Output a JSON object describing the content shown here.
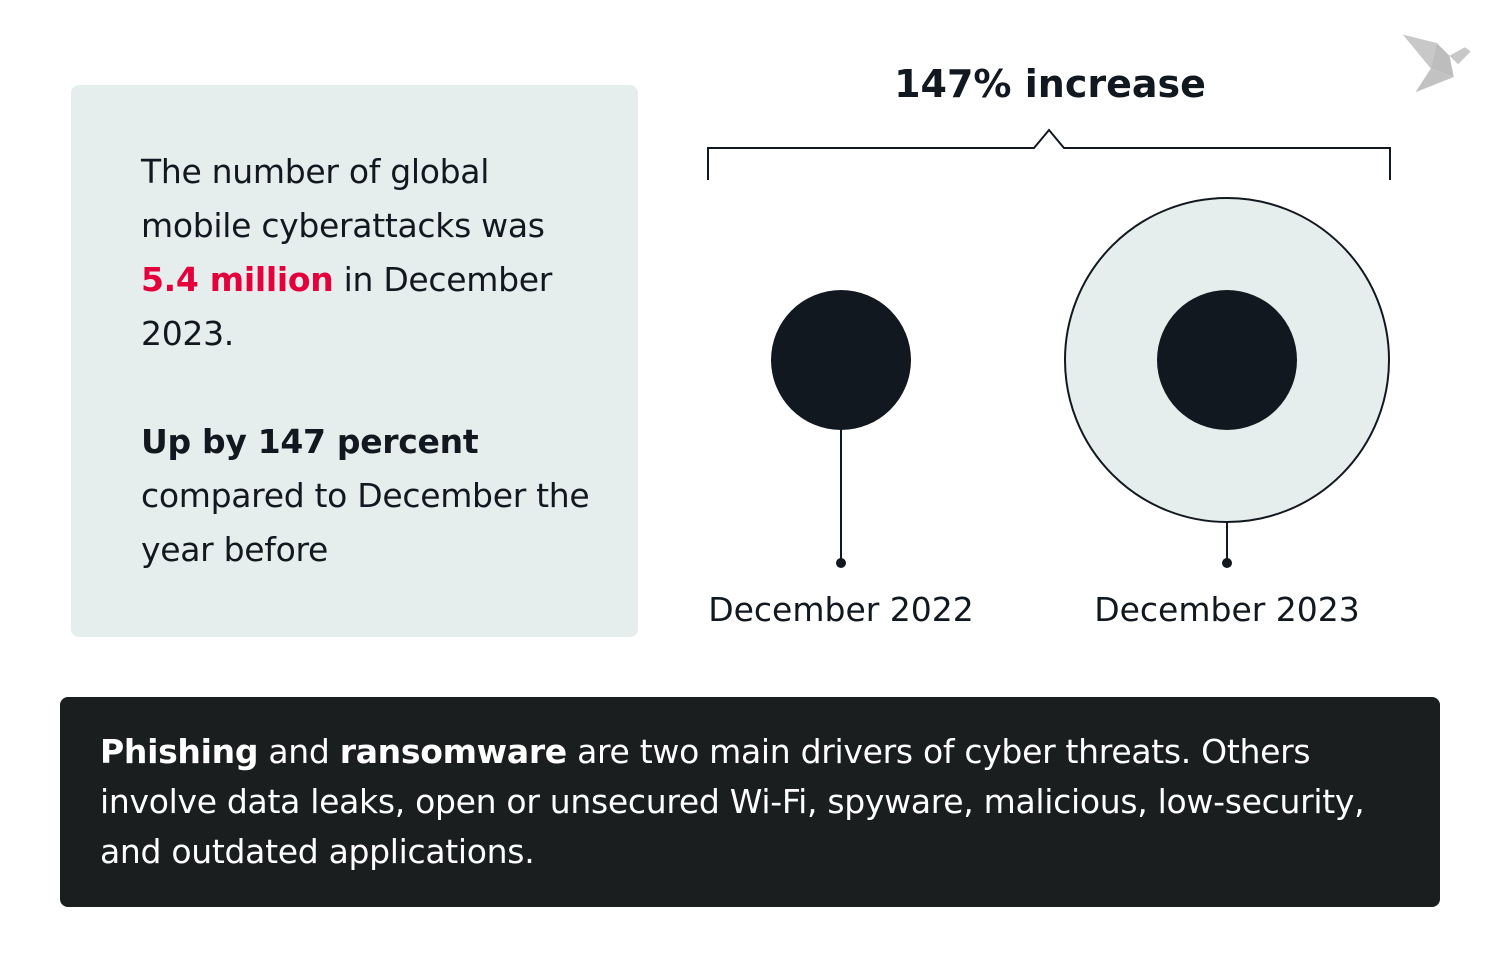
{
  "left_card": {
    "p1_before": "The number of global mobile cyberattacks was ",
    "p1_highlight": "5.4 million",
    "p1_after": " in December 2023.",
    "p2_bold": "Up by 147 percent",
    "p2_rest": " compared to December the year before"
  },
  "chart": {
    "title": "147% increase",
    "labels": [
      "December 2022",
      "December 2023"
    ],
    "values_million": [
      2.19,
      5.4
    ],
    "change_percent": 147
  },
  "bottom": {
    "b1": "Phishing",
    "t1": " and ",
    "b2": "ransomware",
    "t2": " are two main drivers of cyber threats. Others involve data leaks, open or unsecured Wi-Fi, spyware, malicious, low-security, and outdated applications."
  },
  "colors": {
    "accent": "#e4003b",
    "dark": "#12181f",
    "card": "#e6eeed",
    "panel": "#1b1e1f"
  },
  "logo": {
    "icon": "origami-bird-icon"
  }
}
